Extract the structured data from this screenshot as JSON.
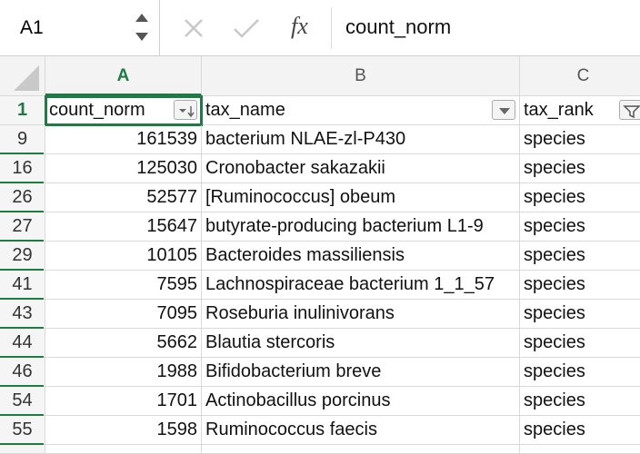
{
  "formula_bar": {
    "name_box": "A1",
    "function_label": "fx",
    "content": "count_norm"
  },
  "columns": [
    "A",
    "B",
    "C"
  ],
  "header_row": {
    "row_number": 1,
    "cells": [
      "count_norm",
      "tax_name",
      "tax_rank"
    ]
  },
  "rows": [
    {
      "row_number": 9,
      "cells": [
        161539,
        "bacterium NLAE-zl-P430",
        "species"
      ]
    },
    {
      "row_number": 16,
      "cells": [
        125030,
        "Cronobacter sakazakii",
        "species"
      ]
    },
    {
      "row_number": 26,
      "cells": [
        52577,
        "[Ruminococcus] obeum",
        "species"
      ]
    },
    {
      "row_number": 27,
      "cells": [
        15647,
        "butyrate-producing bacterium L1-9",
        "species"
      ]
    },
    {
      "row_number": 29,
      "cells": [
        10105,
        "Bacteroides massiliensis",
        "species"
      ]
    },
    {
      "row_number": 41,
      "cells": [
        7595,
        "Lachnospiraceae bacterium 1_1_57",
        "species"
      ]
    },
    {
      "row_number": 43,
      "cells": [
        7095,
        "Roseburia inulinivorans",
        "species"
      ]
    },
    {
      "row_number": 44,
      "cells": [
        5662,
        "Blautia stercoris",
        "species"
      ]
    },
    {
      "row_number": 46,
      "cells": [
        1988,
        "Bifidobacterium breve",
        "species"
      ]
    },
    {
      "row_number": 54,
      "cells": [
        1701,
        "Actinobacillus porcinus",
        "species"
      ]
    },
    {
      "row_number": 55,
      "cells": [
        1598,
        "Ruminococcus faecis",
        "species"
      ]
    }
  ]
}
